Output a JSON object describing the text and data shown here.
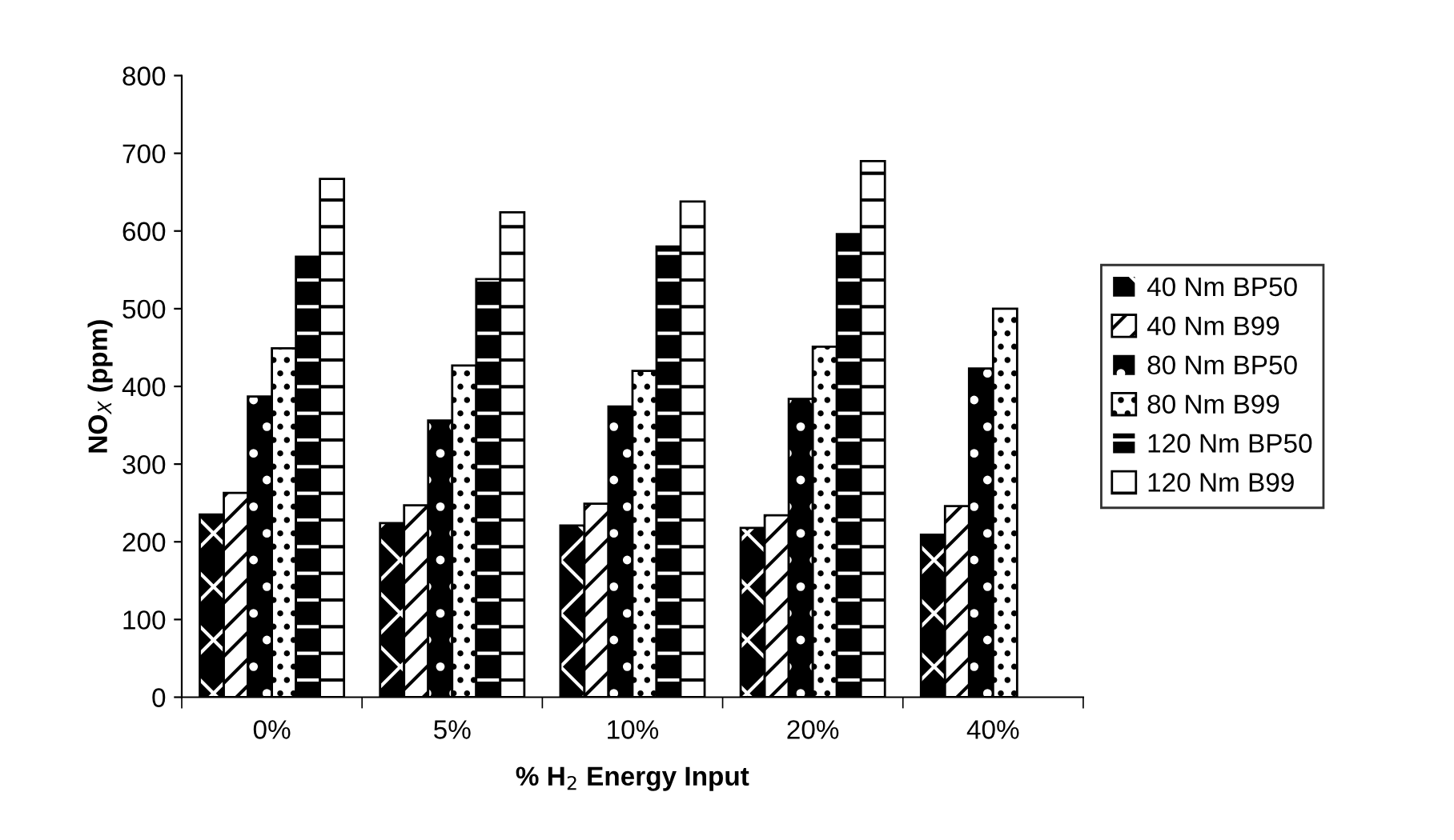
{
  "chart_data": {
    "type": "bar",
    "xlabel": "% H$_{2}$ Energy Input",
    "ylabel": "NO$_{X}$ (ppm)",
    "categories": [
      "0%",
      "5%",
      "10%",
      "20%",
      "40%"
    ],
    "series": [
      {
        "name": "40 Nm BP50",
        "color": "#000000",
        "values": [
          235,
          224,
          221,
          218,
          209
        ]
      },
      {
        "name": "40 Nm B99",
        "color": "#ffffff",
        "values": [
          263,
          247,
          249,
          234,
          246
        ]
      },
      {
        "name": "80 Nm BP50",
        "color": "#000000",
        "values": [
          387,
          356,
          374,
          384,
          423
        ]
      },
      {
        "name": "80 Nm B99",
        "color": "#ffffff",
        "values": [
          449,
          427,
          420,
          451,
          500
        ]
      },
      {
        "name": "120 Nm BP50",
        "color": "#000000",
        "values": [
          567,
          538,
          580,
          596,
          null
        ]
      },
      {
        "name": "120 Nm B99",
        "color": "#ffffff",
        "values": [
          667,
          624,
          638,
          690,
          null
        ]
      }
    ],
    "ylim": [
      0,
      800
    ],
    "yticks": [
      0,
      100,
      200,
      300,
      400,
      500,
      600,
      700,
      800
    ],
    "grid": false,
    "legend": "right"
  }
}
